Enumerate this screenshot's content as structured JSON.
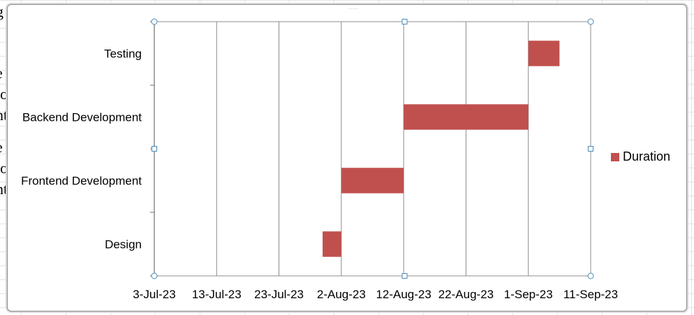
{
  "sheet": {
    "left_cell_fragments": [
      "g",
      "e",
      "lo",
      "nt",
      "e",
      "lo",
      "nt"
    ]
  },
  "colors": {
    "bar": "#c0504d",
    "gridline": "#8c8c8c",
    "handle": "#4a8ab8"
  },
  "chart_data": {
    "type": "bar",
    "orientation": "horizontal",
    "subtype": "gantt-stacked",
    "categories": [
      "Design",
      "Frontend Development",
      "Backend Development",
      "Testing"
    ],
    "series": [
      {
        "name": "Duration",
        "start": [
          "2023-07-30",
          "2023-08-02",
          "2023-08-12",
          "2023-09-01"
        ],
        "end": [
          "2023-08-02",
          "2023-08-12",
          "2023-09-01",
          "2023-09-06"
        ],
        "values": [
          3,
          10,
          20,
          5
        ]
      }
    ],
    "x_ticks": [
      "3-Jul-23",
      "13-Jul-23",
      "23-Jul-23",
      "2-Aug-23",
      "12-Aug-23",
      "22-Aug-23",
      "1-Sep-23",
      "11-Sep-23"
    ],
    "xlim": [
      "2023-07-03",
      "2023-09-11"
    ],
    "xlabel": "",
    "ylabel": "",
    "title": "",
    "grid": "vertical major gridlines",
    "legend_position": "right"
  }
}
